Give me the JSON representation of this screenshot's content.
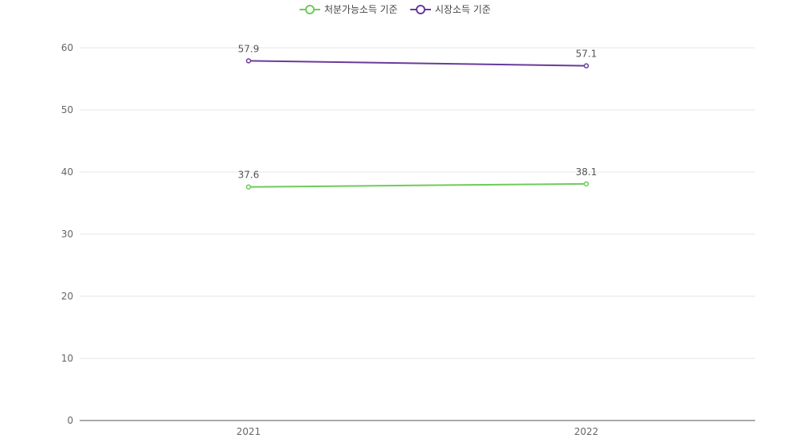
{
  "chart_data": {
    "type": "line",
    "categories": [
      "2021",
      "2022"
    ],
    "series": [
      {
        "name": "처분가능소득 기준",
        "values": [
          37.6,
          38.1
        ],
        "color": "#6dcc5a"
      },
      {
        "name": "시장소득 기준",
        "values": [
          57.9,
          57.1
        ],
        "color": "#6a3a9a"
      }
    ],
    "ylim": [
      0,
      60
    ],
    "yticks": [
      0,
      10,
      20,
      30,
      40,
      50,
      60
    ],
    "grid": true,
    "legend": "top-center",
    "data_labels": true,
    "title": "",
    "xlabel": "",
    "ylabel": ""
  }
}
